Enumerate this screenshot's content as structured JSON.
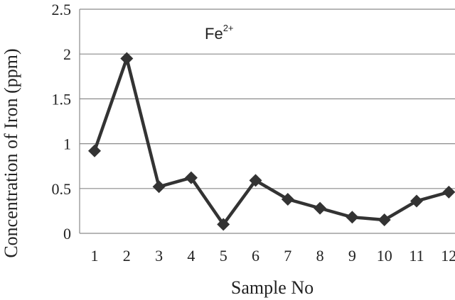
{
  "chart_data": {
    "type": "line",
    "xlabel": "Sample No",
    "ylabel": "Concentration of Iron (ppm)",
    "annotation": {
      "base": "Fe",
      "superscript": "2+"
    },
    "x": [
      1,
      2,
      3,
      4,
      5,
      6,
      7,
      8,
      9,
      10,
      11,
      12
    ],
    "x_tick_labels": [
      "1",
      "2",
      "3",
      "4",
      "5",
      "6",
      "7",
      "8",
      "9",
      "10",
      "11",
      "12"
    ],
    "y_tick_labels": [
      "0",
      "0.5",
      "1",
      "1.5",
      "2",
      "2.5"
    ],
    "ylim": [
      0,
      2.5
    ],
    "series": [
      {
        "values": [
          0.92,
          1.95,
          0.52,
          0.62,
          0.1,
          0.59,
          0.38,
          0.28,
          0.18,
          0.15,
          0.36,
          0.46
        ]
      }
    ],
    "grid": "horizontal",
    "line_color": "#333333",
    "marker": "diamond"
  }
}
